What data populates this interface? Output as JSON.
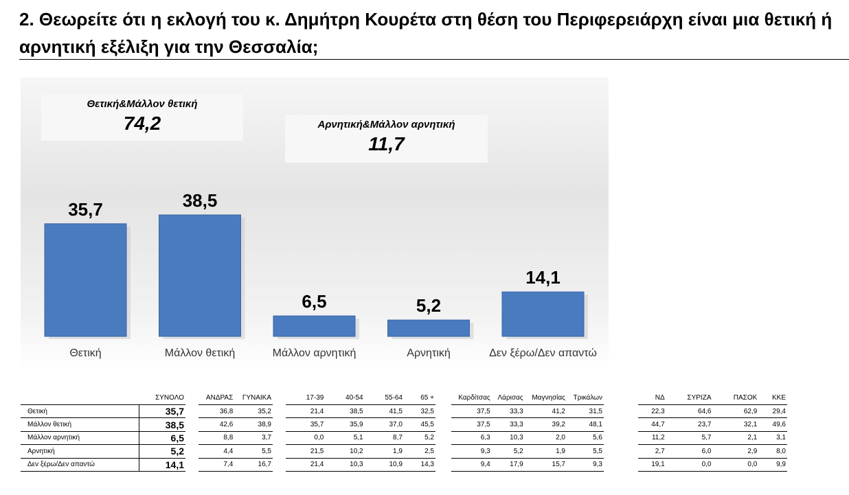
{
  "title": "2. Θεωρείτε ότι η εκλογή του κ. Δημήτρη Κουρέτα στη θέση του Περιφερειάρχη είναι μια θετική ή αρνητική εξέλιξη για την Θεσσαλία;",
  "callouts": {
    "positive": {
      "label": "Θετική&Μάλλον θετική",
      "value": "74,2"
    },
    "negative": {
      "label": "Αρνητική&Μάλλον αρνητική",
      "value": "11,7"
    }
  },
  "colors": {
    "bar": "#4a7bbf",
    "bar_dark": "#3a66a6"
  },
  "chart_data": {
    "type": "bar",
    "categories": [
      "Θετική",
      "Μάλλον θετική",
      "Μάλλον αρνητική",
      "Αρνητική",
      "Δεν ξέρω/Δεν απαντώ"
    ],
    "values": [
      35.7,
      38.5,
      6.5,
      5.2,
      14.1
    ],
    "value_labels": [
      "35,7",
      "38,5",
      "6,5",
      "5,2",
      "14,1"
    ],
    "ylim": [
      0,
      38.5
    ],
    "grid": false,
    "legend": "none"
  },
  "table": {
    "rows": [
      "Θετική",
      "Μάλλον θετική",
      "Μάλλον αρνητική",
      "Αρνητική",
      "Δεν ξέρω/Δεν απαντώ"
    ],
    "groups": [
      {
        "headers": [
          "ΣΥΝΟΛΟ"
        ],
        "data": [
          [
            "35,7"
          ],
          [
            "38,5"
          ],
          [
            "6,5"
          ],
          [
            "5,2"
          ],
          [
            "14,1"
          ]
        ]
      },
      {
        "headers": [
          "ΑΝΔΡΑΣ",
          "ΓΥΝΑΙΚΑ"
        ],
        "data": [
          [
            "36,8",
            "35,2"
          ],
          [
            "42,6",
            "38,9"
          ],
          [
            "8,8",
            "3,7"
          ],
          [
            "4,4",
            "5,5"
          ],
          [
            "7,4",
            "16,7"
          ]
        ]
      },
      {
        "headers": [
          "17-39",
          "40-54",
          "55-64",
          "65 +"
        ],
        "data": [
          [
            "21,4",
            "38,5",
            "41,5",
            "32,5"
          ],
          [
            "35,7",
            "35,9",
            "37,0",
            "45,5"
          ],
          [
            "0,0",
            "5,1",
            "8,7",
            "5,2"
          ],
          [
            "21,5",
            "10,2",
            "1,9",
            "2,5"
          ],
          [
            "21,4",
            "10,3",
            "10,9",
            "14,3"
          ]
        ]
      },
      {
        "headers": [
          "Καρδίτσας",
          "Λάρισας",
          "Μαγνησίας",
          "Τρικάλων"
        ],
        "data": [
          [
            "37,5",
            "33,3",
            "41,2",
            "31,5"
          ],
          [
            "37,5",
            "33,3",
            "39,2",
            "48,1"
          ],
          [
            "6,3",
            "10,3",
            "2,0",
            "5,6"
          ],
          [
            "9,3",
            "5,2",
            "1,9",
            "5,5"
          ],
          [
            "9,4",
            "17,9",
            "15,7",
            "9,3"
          ]
        ]
      },
      {
        "headers": [
          "ΝΔ",
          "ΣΥΡΙΖΑ",
          "ΠΑΣΟΚ",
          "ΚΚΕ"
        ],
        "data": [
          [
            "22,3",
            "64,6",
            "62,9",
            "29,4"
          ],
          [
            "44,7",
            "23,7",
            "32,1",
            "49,6"
          ],
          [
            "11,2",
            "5,7",
            "2,1",
            "3,1"
          ],
          [
            "2,7",
            "6,0",
            "2,9",
            "8,0"
          ],
          [
            "19,1",
            "0,0",
            "0,0",
            "9,9"
          ]
        ]
      }
    ]
  }
}
